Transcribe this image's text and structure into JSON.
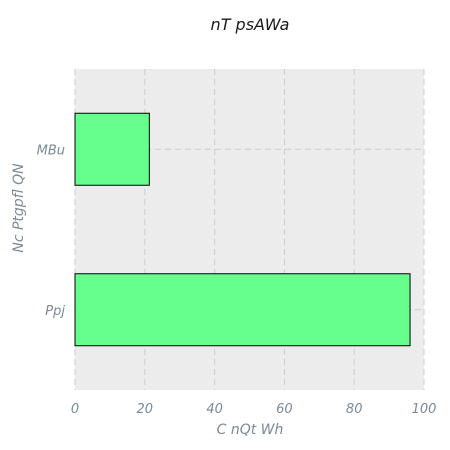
{
  "chart_data": {
    "type": "bar",
    "orientation": "horizontal",
    "title": "nT psAWa",
    "xlabel": "C nQt Wh",
    "ylabel": "Nc Ptgpfl QN",
    "categories": [
      "MBu",
      "Ppj"
    ],
    "values": [
      21.3,
      96.0
    ],
    "xlim": [
      0,
      100
    ],
    "xticks": [
      "0",
      "20",
      "40",
      "60",
      "80",
      "100"
    ],
    "grid": true,
    "bar_color": "#66ff8c",
    "background_color": "#ececec"
  }
}
